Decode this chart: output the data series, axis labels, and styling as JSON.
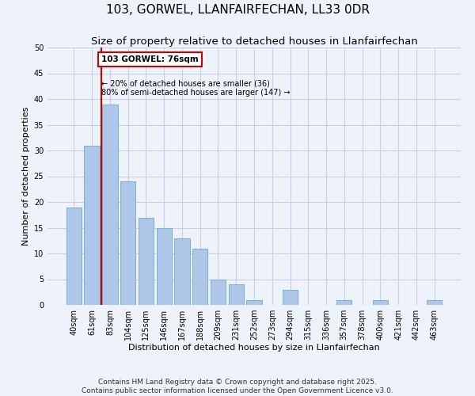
{
  "title": "103, GORWEL, LLANFAIRFECHAN, LL33 0DR",
  "subtitle": "Size of property relative to detached houses in Llanfairfechan",
  "xlabel": "Distribution of detached houses by size in Llanfairfechan",
  "ylabel": "Number of detached properties",
  "bar_labels": [
    "40sqm",
    "61sqm",
    "83sqm",
    "104sqm",
    "125sqm",
    "146sqm",
    "167sqm",
    "188sqm",
    "209sqm",
    "231sqm",
    "252sqm",
    "273sqm",
    "294sqm",
    "315sqm",
    "336sqm",
    "357sqm",
    "378sqm",
    "400sqm",
    "421sqm",
    "442sqm",
    "463sqm"
  ],
  "bar_values": [
    19,
    31,
    39,
    24,
    17,
    15,
    13,
    11,
    5,
    4,
    1,
    0,
    3,
    0,
    0,
    1,
    0,
    1,
    0,
    0,
    1
  ],
  "bar_color": "#aec6e8",
  "bar_edge_color": "#7aaed0",
  "vline_color": "#cc0000",
  "ylim": [
    0,
    50
  ],
  "annotation_title": "103 GORWEL: 76sqm",
  "annotation_line1": "← 20% of detached houses are smaller (36)",
  "annotation_line2": "80% of semi-detached houses are larger (147) →",
  "annotation_box_color": "#ffffff",
  "annotation_box_edge": "#cc0000",
  "footer_line1": "Contains HM Land Registry data © Crown copyright and database right 2025.",
  "footer_line2": "Contains public sector information licensed under the Open Government Licence v3.0.",
  "bg_color": "#eef2fb",
  "grid_color": "#c5d0e8",
  "title_fontsize": 11,
  "subtitle_fontsize": 9.5,
  "axis_label_fontsize": 8,
  "tick_fontsize": 7,
  "footer_fontsize": 6.5
}
